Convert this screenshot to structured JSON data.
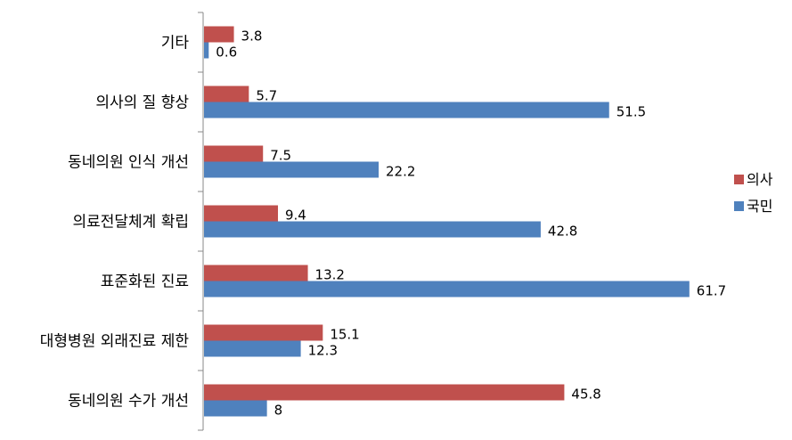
{
  "chart_data": {
    "type": "bar",
    "orientation": "horizontal",
    "categories": [
      "기타",
      "의사의 질 향상",
      "동네의원 인식 개선",
      "의료전달체계 확립",
      "표준화된 진료",
      "대형병원 외래진료 제한",
      "동네의원 수가 개선"
    ],
    "series": [
      {
        "name": "의사",
        "color": "#c0504d",
        "values": [
          3.8,
          5.7,
          7.5,
          9.4,
          13.2,
          15.1,
          45.8
        ]
      },
      {
        "name": "국민",
        "color": "#4f81bd",
        "values": [
          0.6,
          51.5,
          22.2,
          42.8,
          61.7,
          12.3,
          8
        ]
      }
    ],
    "value_labels": {
      "의사": [
        "3.8",
        "5.7",
        "7.5",
        "9.4",
        "13.2",
        "15.1",
        "45.8"
      ],
      "국민": [
        "0.6",
        "51.5",
        "22.2",
        "42.8",
        "61.7",
        "12.3",
        "8"
      ]
    },
    "xlim": [
      0,
      65
    ],
    "grid": false,
    "legend_position": "right"
  }
}
